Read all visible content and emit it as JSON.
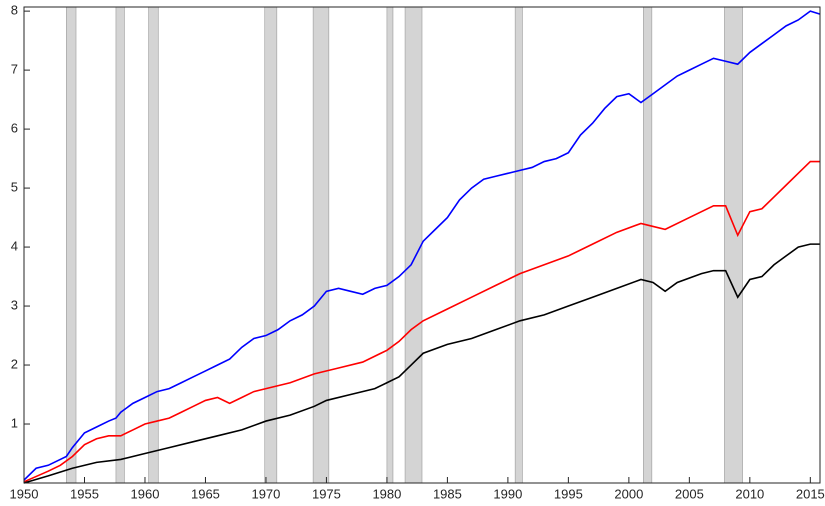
{
  "chart_data": {
    "type": "line",
    "xlim": [
      1950,
      2015.8
    ],
    "ylim": [
      0,
      8.07
    ],
    "xticks": [
      1950,
      1955,
      1960,
      1965,
      1970,
      1975,
      1980,
      1985,
      1990,
      1995,
      2000,
      2005,
      2010,
      2015
    ],
    "yticks": [
      1,
      2,
      3,
      4,
      5,
      6,
      7,
      8
    ],
    "shading_color": "#d4d4d4",
    "recessions": [
      [
        1953.5,
        1954.3
      ],
      [
        1957.6,
        1958.3
      ],
      [
        1960.3,
        1961.1
      ],
      [
        1969.9,
        1970.9
      ],
      [
        1973.9,
        1975.2
      ],
      [
        1980.0,
        1980.5
      ],
      [
        1981.5,
        1982.9
      ],
      [
        1990.6,
        1991.2
      ],
      [
        2001.2,
        2001.9
      ],
      [
        2007.9,
        2009.4
      ]
    ],
    "series": [
      {
        "color": "#0000ff",
        "x": [
          1950,
          1951,
          1952,
          1953,
          1953.5,
          1954,
          1955,
          1956,
          1957,
          1957.6,
          1958,
          1959,
          1960,
          1961,
          1962,
          1963,
          1964,
          1965,
          1966,
          1967,
          1968,
          1969,
          1970,
          1971,
          1972,
          1973,
          1974,
          1975,
          1976,
          1977,
          1978,
          1979,
          1980,
          1981,
          1982,
          1983,
          1984,
          1985,
          1986,
          1987,
          1988,
          1989,
          1990,
          1991,
          1992,
          1993,
          1994,
          1995,
          1996,
          1997,
          1998,
          1999,
          2000,
          2001,
          2002,
          2003,
          2004,
          2005,
          2006,
          2007,
          2008,
          2009,
          2010,
          2011,
          2012,
          2013,
          2014,
          2015,
          2015.8
        ],
        "values": [
          0.05,
          0.25,
          0.3,
          0.4,
          0.45,
          0.6,
          0.85,
          0.95,
          1.05,
          1.1,
          1.2,
          1.35,
          1.45,
          1.55,
          1.6,
          1.7,
          1.8,
          1.9,
          2.0,
          2.1,
          2.3,
          2.45,
          2.5,
          2.6,
          2.75,
          2.85,
          3.0,
          3.25,
          3.3,
          3.25,
          3.2,
          3.3,
          3.35,
          3.5,
          3.7,
          4.1,
          4.3,
          4.5,
          4.8,
          5.0,
          5.15,
          5.2,
          5.25,
          5.3,
          5.35,
          5.45,
          5.5,
          5.6,
          5.9,
          6.1,
          6.35,
          6.55,
          6.6,
          6.45,
          6.6,
          6.75,
          6.9,
          7.0,
          7.1,
          7.2,
          7.15,
          7.1,
          7.3,
          7.45,
          7.6,
          7.75,
          7.85,
          8.0,
          7.95
        ]
      },
      {
        "color": "#ff0000",
        "x": [
          1950,
          1952,
          1953,
          1954,
          1955,
          1956,
          1957,
          1958,
          1959,
          1960,
          1961,
          1962,
          1963,
          1964,
          1965,
          1966,
          1967,
          1968,
          1969,
          1970,
          1972,
          1974,
          1976,
          1978,
          1980,
          1981,
          1982,
          1983,
          1985,
          1987,
          1989,
          1991,
          1993,
          1995,
          1997,
          1999,
          2001,
          2002,
          2003,
          2005,
          2007,
          2008,
          2009,
          2010,
          2011,
          2012,
          2013,
          2014,
          2015,
          2015.8
        ],
        "values": [
          0.02,
          0.2,
          0.3,
          0.45,
          0.65,
          0.75,
          0.8,
          0.8,
          0.9,
          1.0,
          1.05,
          1.1,
          1.2,
          1.3,
          1.4,
          1.45,
          1.35,
          1.45,
          1.55,
          1.6,
          1.7,
          1.85,
          1.95,
          2.05,
          2.25,
          2.4,
          2.6,
          2.75,
          2.95,
          3.15,
          3.35,
          3.55,
          3.7,
          3.85,
          4.05,
          4.25,
          4.4,
          4.35,
          4.3,
          4.5,
          4.7,
          4.7,
          4.2,
          4.6,
          4.65,
          4.85,
          5.05,
          5.25,
          5.45,
          5.45
        ]
      },
      {
        "color": "#000000",
        "x": [
          1950,
          1952,
          1954,
          1956,
          1958,
          1960,
          1962,
          1964,
          1966,
          1968,
          1970,
          1972,
          1974,
          1975,
          1977,
          1979,
          1980,
          1981,
          1982,
          1983,
          1985,
          1987,
          1989,
          1991,
          1993,
          1995,
          1997,
          1999,
          2001,
          2002,
          2003,
          2004,
          2006,
          2007,
          2008,
          2009,
          2010,
          2011,
          2012,
          2013,
          2014,
          2015,
          2015.8
        ],
        "values": [
          0.0,
          0.12,
          0.25,
          0.35,
          0.4,
          0.5,
          0.6,
          0.7,
          0.8,
          0.9,
          1.05,
          1.15,
          1.3,
          1.4,
          1.5,
          1.6,
          1.7,
          1.8,
          2.0,
          2.2,
          2.35,
          2.45,
          2.6,
          2.75,
          2.85,
          3.0,
          3.15,
          3.3,
          3.45,
          3.4,
          3.25,
          3.4,
          3.55,
          3.6,
          3.6,
          3.15,
          3.45,
          3.5,
          3.7,
          3.85,
          4.0,
          4.05,
          4.05
        ]
      }
    ]
  }
}
